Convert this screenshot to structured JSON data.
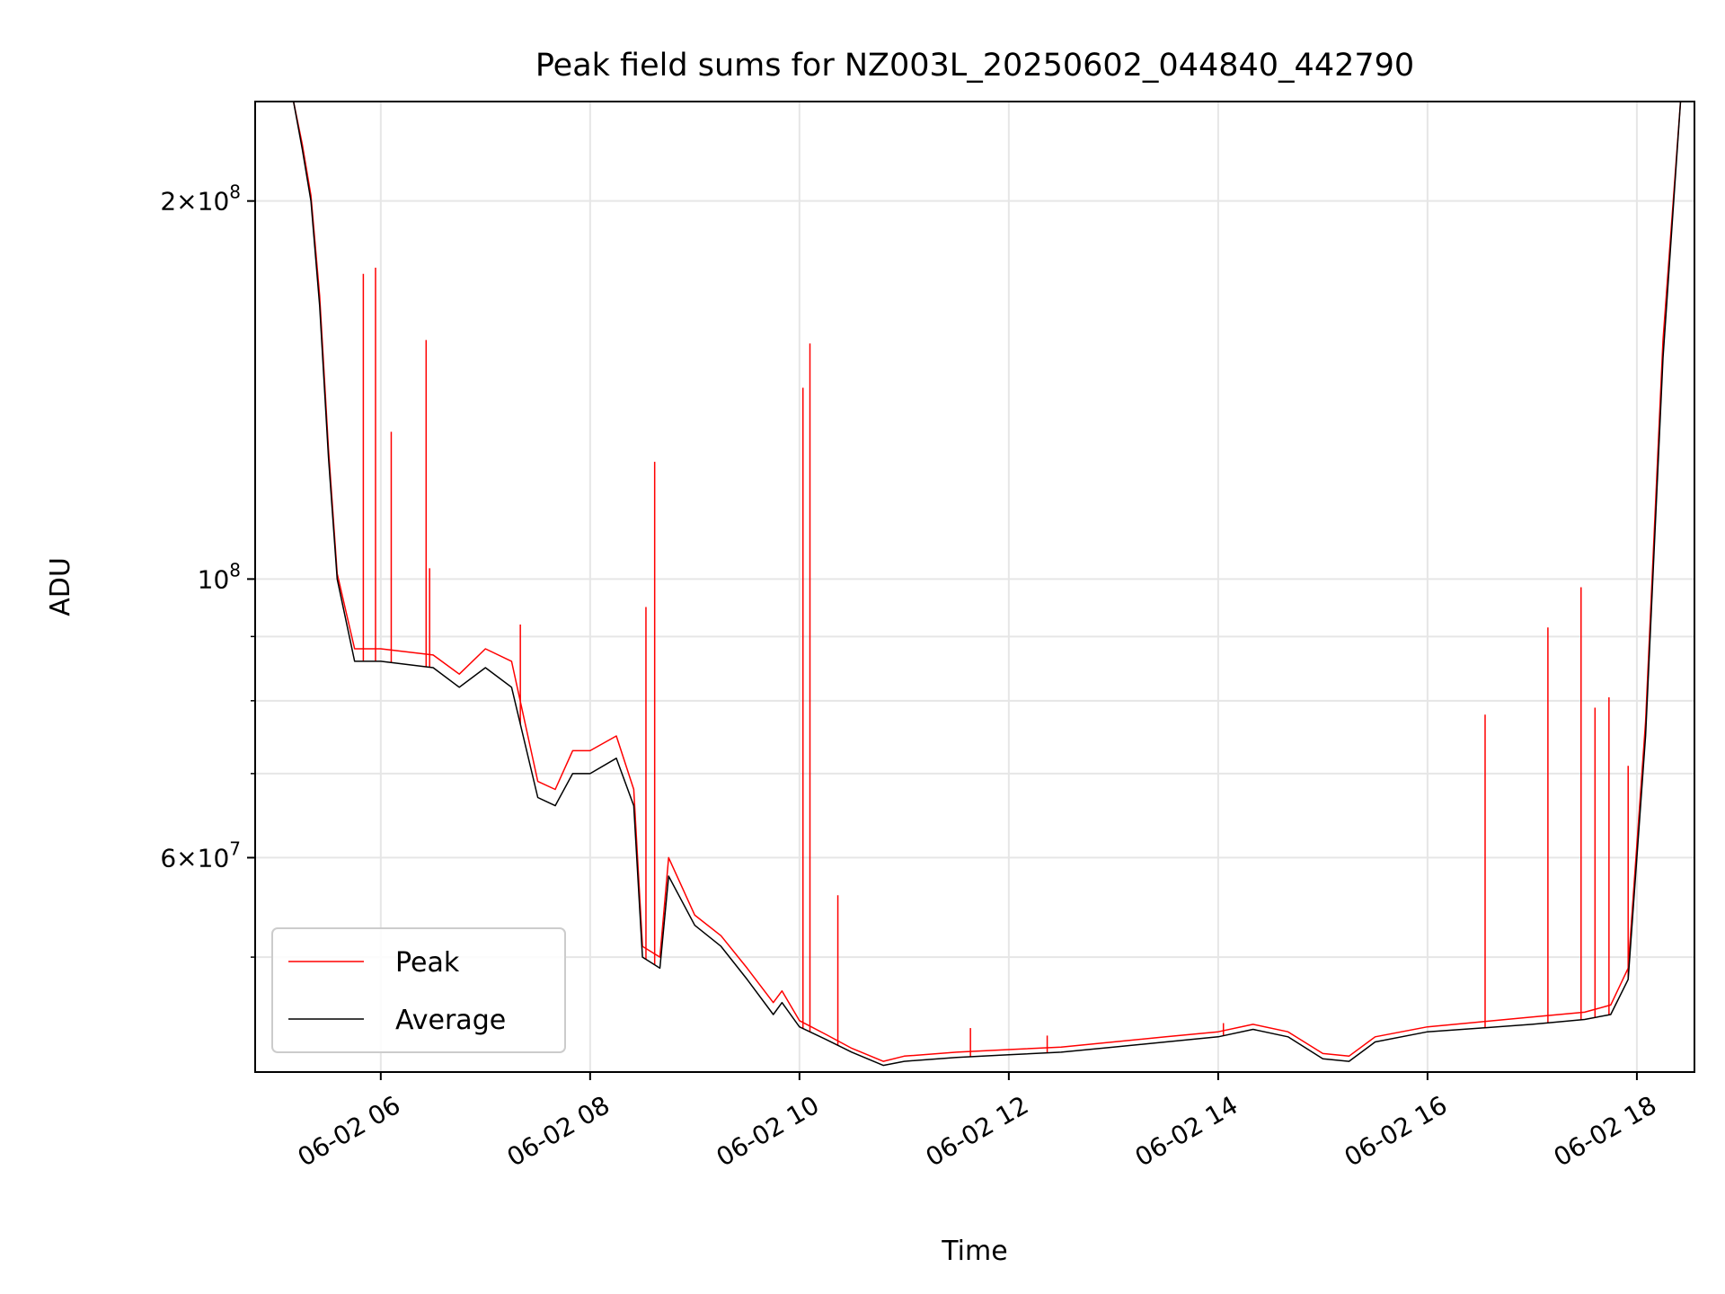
{
  "chart_data": {
    "type": "line",
    "title": "Peak field sums for NZ003L_20250602_044840_442790",
    "xlabel": "Time",
    "ylabel": "ADU",
    "yscale": "log",
    "ylim": [
      40500000,
      240000000
    ],
    "xlim": [
      "2025-06-02 04:48",
      "2025-06-02 18:33"
    ],
    "grid": true,
    "legend": {
      "position": "lower-left",
      "entries": [
        "Peak",
        "Average"
      ]
    },
    "x_ticks": [
      "06-02 06",
      "06-02 08",
      "06-02 10",
      "06-02 12",
      "06-02 14",
      "06-02 16",
      "06-02 18"
    ],
    "y_ticks": [
      {
        "value": 60000000,
        "mantissa": "6",
        "exponent": "7"
      },
      {
        "value": 100000000,
        "mantissa": "",
        "exponent": "8"
      },
      {
        "value": 200000000,
        "mantissa": "2",
        "exponent": "8"
      }
    ],
    "series": [
      {
        "name": "Average",
        "color": "#000000",
        "x": [
          "2025-06-02 04:48",
          "2025-06-02 05:10",
          "2025-06-02 05:15",
          "2025-06-02 05:20",
          "2025-06-02 05:25",
          "2025-06-02 05:30",
          "2025-06-02 05:35",
          "2025-06-02 05:45",
          "2025-06-02 06:00",
          "2025-06-02 06:30",
          "2025-06-02 06:45",
          "2025-06-02 07:00",
          "2025-06-02 07:15",
          "2025-06-02 07:30",
          "2025-06-02 07:40",
          "2025-06-02 07:50",
          "2025-06-02 08:00",
          "2025-06-02 08:15",
          "2025-06-02 08:25",
          "2025-06-02 08:30",
          "2025-06-02 08:40",
          "2025-06-02 08:45",
          "2025-06-02 09:00",
          "2025-06-02 09:15",
          "2025-06-02 09:30",
          "2025-06-02 09:45",
          "2025-06-02 09:50",
          "2025-06-02 10:00",
          "2025-06-02 10:15",
          "2025-06-02 10:30",
          "2025-06-02 10:48",
          "2025-06-02 11:00",
          "2025-06-02 11:30",
          "2025-06-02 12:00",
          "2025-06-02 12:30",
          "2025-06-02 13:00",
          "2025-06-02 13:30",
          "2025-06-02 14:00",
          "2025-06-02 14:20",
          "2025-06-02 14:40",
          "2025-06-02 15:00",
          "2025-06-02 15:15",
          "2025-06-02 15:30",
          "2025-06-02 16:00",
          "2025-06-02 16:30",
          "2025-06-02 17:00",
          "2025-06-02 17:30",
          "2025-06-02 17:45",
          "2025-06-02 17:55",
          "2025-06-02 18:05",
          "2025-06-02 18:15",
          "2025-06-02 18:25",
          "2025-06-02 18:33"
        ],
        "y": [
          240000000,
          240000000,
          220000000,
          200000000,
          165000000,
          125000000,
          100000000,
          86000000,
          86000000,
          85000000,
          82000000,
          85000000,
          82000000,
          67000000,
          66000000,
          70000000,
          70000000,
          72000000,
          66000000,
          50000000,
          49000000,
          58000000,
          53000000,
          51000000,
          48000000,
          45000000,
          46000000,
          44000000,
          43000000,
          42000000,
          41000000,
          41300000,
          41600000,
          41800000,
          42000000,
          42400000,
          42800000,
          43200000,
          43800000,
          43200000,
          41500000,
          41300000,
          42800000,
          43600000,
          43900000,
          44200000,
          44600000,
          45000000,
          48000000,
          75000000,
          150000000,
          240000000,
          240000000
        ]
      },
      {
        "name": "Peak",
        "color": "#ff0000",
        "x": [
          "2025-06-02 04:48",
          "2025-06-02 05:10",
          "2025-06-02 05:15",
          "2025-06-02 05:20",
          "2025-06-02 05:25",
          "2025-06-02 05:30",
          "2025-06-02 05:35",
          "2025-06-02 05:45",
          "2025-06-02 06:00",
          "2025-06-02 06:30",
          "2025-06-02 06:45",
          "2025-06-02 07:00",
          "2025-06-02 07:15",
          "2025-06-02 07:30",
          "2025-06-02 07:40",
          "2025-06-02 07:50",
          "2025-06-02 08:00",
          "2025-06-02 08:15",
          "2025-06-02 08:25",
          "2025-06-02 08:30",
          "2025-06-02 08:40",
          "2025-06-02 08:45",
          "2025-06-02 09:00",
          "2025-06-02 09:15",
          "2025-06-02 09:30",
          "2025-06-02 09:45",
          "2025-06-02 09:50",
          "2025-06-02 10:00",
          "2025-06-02 10:15",
          "2025-06-02 10:30",
          "2025-06-02 10:48",
          "2025-06-02 11:00",
          "2025-06-02 11:30",
          "2025-06-02 12:00",
          "2025-06-02 12:30",
          "2025-06-02 13:00",
          "2025-06-02 13:30",
          "2025-06-02 14:00",
          "2025-06-02 14:20",
          "2025-06-02 14:40",
          "2025-06-02 15:00",
          "2025-06-02 15:15",
          "2025-06-02 15:30",
          "2025-06-02 16:00",
          "2025-06-02 16:30",
          "2025-06-02 17:00",
          "2025-06-02 17:30",
          "2025-06-02 17:45",
          "2025-06-02 17:55",
          "2025-06-02 18:05",
          "2025-06-02 18:15",
          "2025-06-02 18:25",
          "2025-06-02 18:33"
        ],
        "y": [
          240000000,
          240000000,
          222000000,
          202000000,
          168000000,
          127000000,
          101000000,
          88000000,
          88000000,
          87000000,
          84000000,
          88000000,
          86000000,
          69000000,
          68000000,
          73000000,
          73000000,
          75000000,
          68000000,
          51000000,
          50000000,
          60000000,
          54000000,
          52000000,
          49000000,
          46000000,
          47000000,
          44500000,
          43400000,
          42300000,
          41300000,
          41700000,
          42000000,
          42200000,
          42400000,
          42800000,
          43200000,
          43600000,
          44200000,
          43600000,
          41900000,
          41700000,
          43200000,
          44000000,
          44400000,
          44800000,
          45200000,
          45800000,
          49000000,
          77000000,
          155000000,
          240000000,
          240000000
        ]
      }
    ],
    "peak_spikes": [
      {
        "x": "2025-06-02 05:50",
        "y": 175000000
      },
      {
        "x": "2025-06-02 05:57",
        "y": 177000000
      },
      {
        "x": "2025-06-02 06:06",
        "y": 131000000
      },
      {
        "x": "2025-06-02 06:26",
        "y": 155000000
      },
      {
        "x": "2025-06-02 06:28",
        "y": 102000000
      },
      {
        "x": "2025-06-02 07:20",
        "y": 92000000
      },
      {
        "x": "2025-06-02 08:32",
        "y": 95000000
      },
      {
        "x": "2025-06-02 08:37",
        "y": 124000000
      },
      {
        "x": "2025-06-02 10:02",
        "y": 142000000
      },
      {
        "x": "2025-06-02 10:06",
        "y": 154000000
      },
      {
        "x": "2025-06-02 10:22",
        "y": 56000000
      },
      {
        "x": "2025-06-02 11:38",
        "y": 43900000
      },
      {
        "x": "2025-06-02 12:22",
        "y": 43300000
      },
      {
        "x": "2025-06-02 14:03",
        "y": 44300000
      },
      {
        "x": "2025-06-02 16:33",
        "y": 78000000
      },
      {
        "x": "2025-06-02 17:09",
        "y": 91500000
      },
      {
        "x": "2025-06-02 17:28",
        "y": 98500000
      },
      {
        "x": "2025-06-02 17:36",
        "y": 79000000
      },
      {
        "x": "2025-06-02 17:44",
        "y": 80500000
      },
      {
        "x": "2025-06-02 17:55",
        "y": 71000000
      }
    ]
  }
}
